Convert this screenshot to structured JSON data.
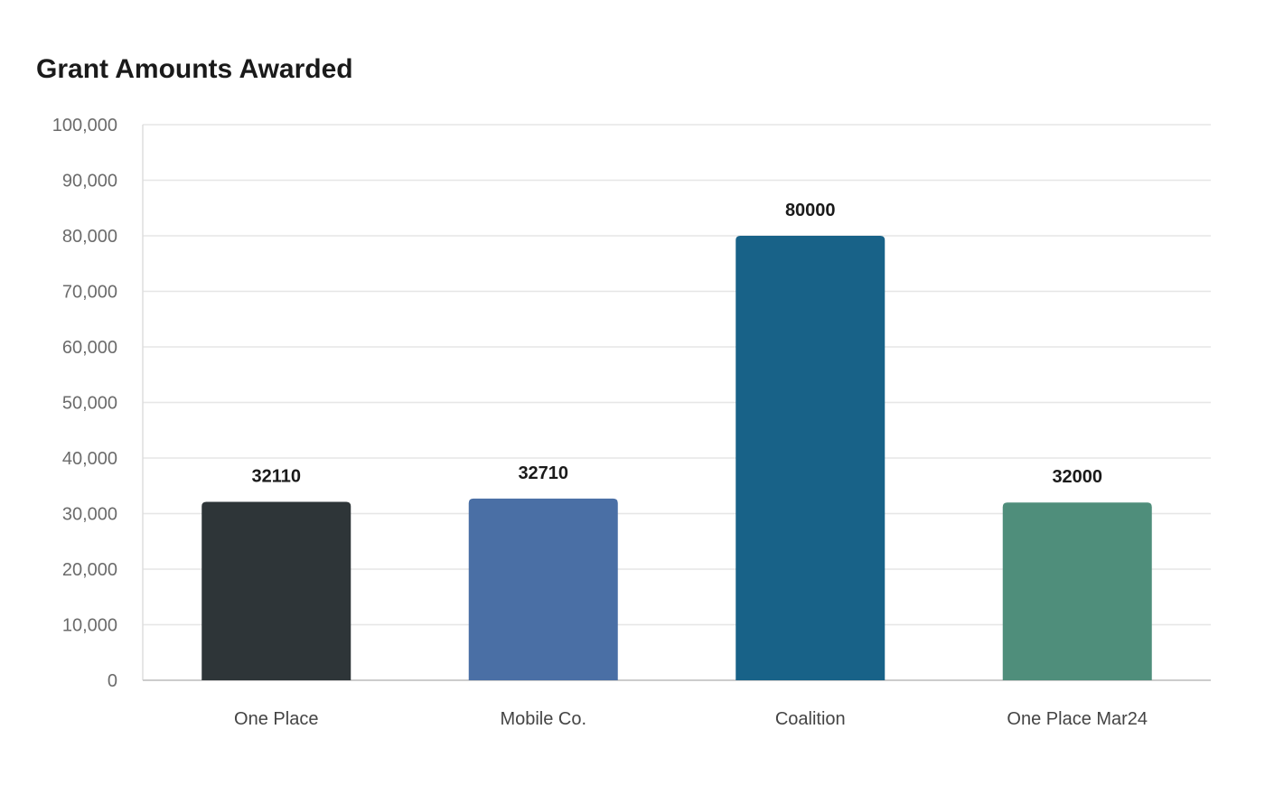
{
  "chart_data": {
    "type": "bar",
    "title": "Grant Amounts Awarded",
    "xlabel": "",
    "ylabel": "",
    "categories": [
      "One Place",
      "Mobile Co.",
      "Coalition",
      "One Place Mar24"
    ],
    "values": [
      32110,
      32710,
      80000,
      32000
    ],
    "data_labels": [
      "32110",
      "32710",
      "80000",
      "32000"
    ],
    "colors": [
      "#2e3538",
      "#4a6fa5",
      "#186288",
      "#4f8e7b"
    ],
    "ylim": [
      0,
      100000
    ],
    "yticks": [
      0,
      10000,
      20000,
      30000,
      40000,
      50000,
      60000,
      70000,
      80000,
      90000,
      100000
    ],
    "ytick_labels": [
      "0",
      "10,000",
      "20,000",
      "30,000",
      "40,000",
      "50,000",
      "60,000",
      "70,000",
      "80,000",
      "90,000",
      "100,000"
    ],
    "grid": true,
    "legend": "none"
  }
}
